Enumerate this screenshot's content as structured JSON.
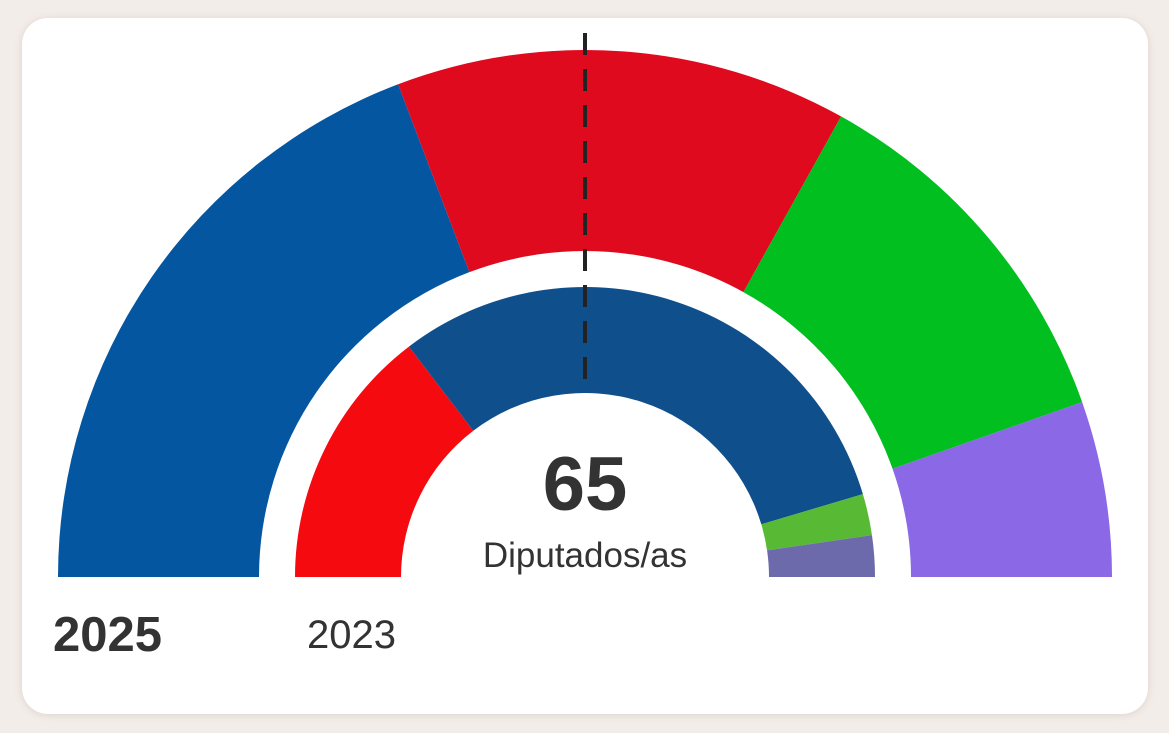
{
  "chart_data": {
    "type": "pie",
    "layout": "hemicycle",
    "total_seats": 65,
    "total_label": "65",
    "caption": "Diputados/as",
    "majority_line": "dashed vertical at majority threshold",
    "rings": [
      {
        "year": "2025",
        "position": "outer",
        "segments": [
          {
            "value": 25,
            "color": "#0456a0"
          },
          {
            "value": 18,
            "color": "#df0a1e"
          },
          {
            "value": 15,
            "color": "#00bf1f"
          },
          {
            "value": 7,
            "color": "#8a68e6"
          }
        ]
      },
      {
        "year": "2023",
        "position": "inner",
        "segments": [
          {
            "value": 19,
            "color": "#f50a10"
          },
          {
            "value": 40,
            "color": "#0f508c"
          },
          {
            "value": 3,
            "color": "#58b934"
          },
          {
            "value": 3,
            "color": "#6c6aab"
          }
        ]
      }
    ]
  }
}
